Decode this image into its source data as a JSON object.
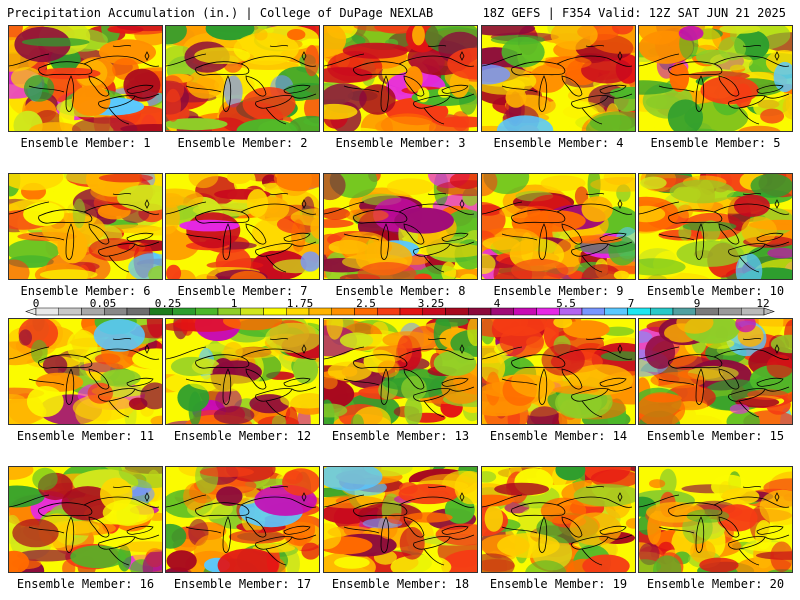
{
  "header": {
    "left": "Precipitation Accumulation (in.) | College of DuPage NEXLAB",
    "right": "18Z GEFS | F354 Valid: 12Z SAT JUN 21 2025"
  },
  "members": [
    {
      "label": "Ensemble Member: 1"
    },
    {
      "label": "Ensemble Member: 2"
    },
    {
      "label": "Ensemble Member: 3"
    },
    {
      "label": "Ensemble Member: 4"
    },
    {
      "label": "Ensemble Member: 5"
    },
    {
      "label": "Ensemble Member: 6"
    },
    {
      "label": "Ensemble Member: 7"
    },
    {
      "label": "Ensemble Member: 8"
    },
    {
      "label": "Ensemble Member: 9"
    },
    {
      "label": "Ensemble Member: 10"
    },
    {
      "label": "Ensemble Member: 11"
    },
    {
      "label": "Ensemble Member: 12"
    },
    {
      "label": "Ensemble Member: 13"
    },
    {
      "label": "Ensemble Member: 14"
    },
    {
      "label": "Ensemble Member: 15"
    },
    {
      "label": "Ensemble Member: 16"
    },
    {
      "label": "Ensemble Member: 17"
    },
    {
      "label": "Ensemble Member: 18"
    },
    {
      "label": "Ensemble Member: 19"
    },
    {
      "label": "Ensemble Member: 20"
    }
  ],
  "colorbar": {
    "labels": [
      "0",
      "0.05",
      "0.25",
      "1",
      "1.75",
      "2.5",
      "3.25",
      "4",
      "5.5",
      "7",
      "9",
      "12"
    ],
    "colors": [
      "#e8e8e8",
      "#c8c8c8",
      "#a8a8a8",
      "#888888",
      "#6e6e6e",
      "#1e7d1e",
      "#2e9e2e",
      "#4cb82a",
      "#8fce28",
      "#d0e61c",
      "#fbfb00",
      "#ffd800",
      "#ffb400",
      "#ff9000",
      "#ff6a00",
      "#f53c14",
      "#e31414",
      "#c80a1e",
      "#a8081e",
      "#8c0a3c",
      "#a00a78",
      "#c80ab4",
      "#e628e6",
      "#b464f0",
      "#7896ff",
      "#5ac8ff",
      "#1ee6f0",
      "#28c8c8",
      "#50a0a0",
      "#7a7a7a",
      "#9a9a9a",
      "#bababa"
    ]
  }
}
